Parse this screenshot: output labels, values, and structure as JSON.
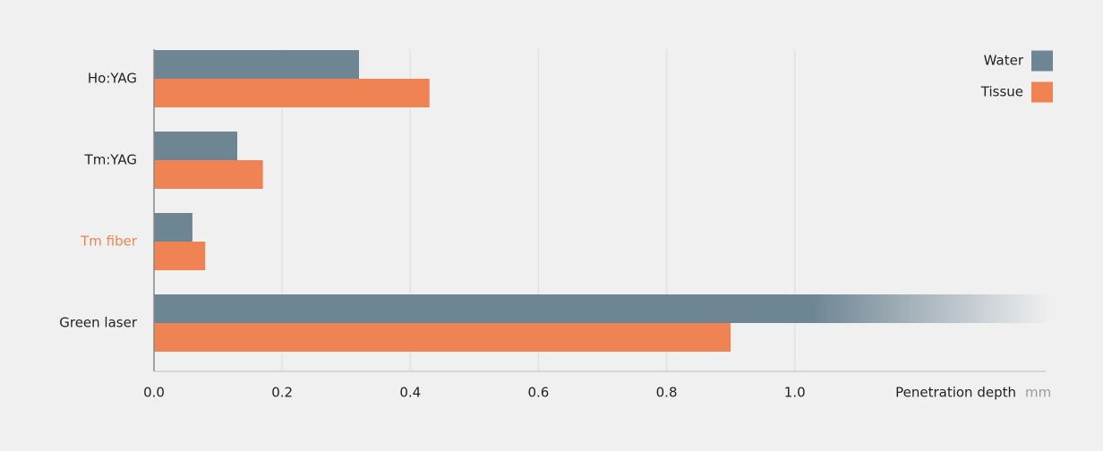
{
  "chart_data": {
    "type": "hbar",
    "categories": [
      "Ho:YAG",
      "Tm:YAG",
      "Tm fiber",
      "Green laser"
    ],
    "series": [
      {
        "name": "Water",
        "color": "#6e8694",
        "values": [
          0.32,
          0.13,
          0.06,
          1.4
        ]
      },
      {
        "name": "Tissue",
        "color": "#ef8354",
        "values": [
          0.43,
          0.17,
          0.08,
          0.9
        ]
      }
    ],
    "highlight": {
      "index": 2,
      "color": "#ef8354"
    },
    "xlabel": "Penetration depth",
    "xunit": "mm",
    "xlim": [
      0,
      1.4
    ],
    "xticks": [
      {
        "value": 0,
        "label": "0.0"
      },
      0.2,
      0.4,
      0.6,
      0.8,
      {
        "value": 1,
        "label": "1.0"
      }
    ],
    "grid": true,
    "legend": "top-right"
  }
}
